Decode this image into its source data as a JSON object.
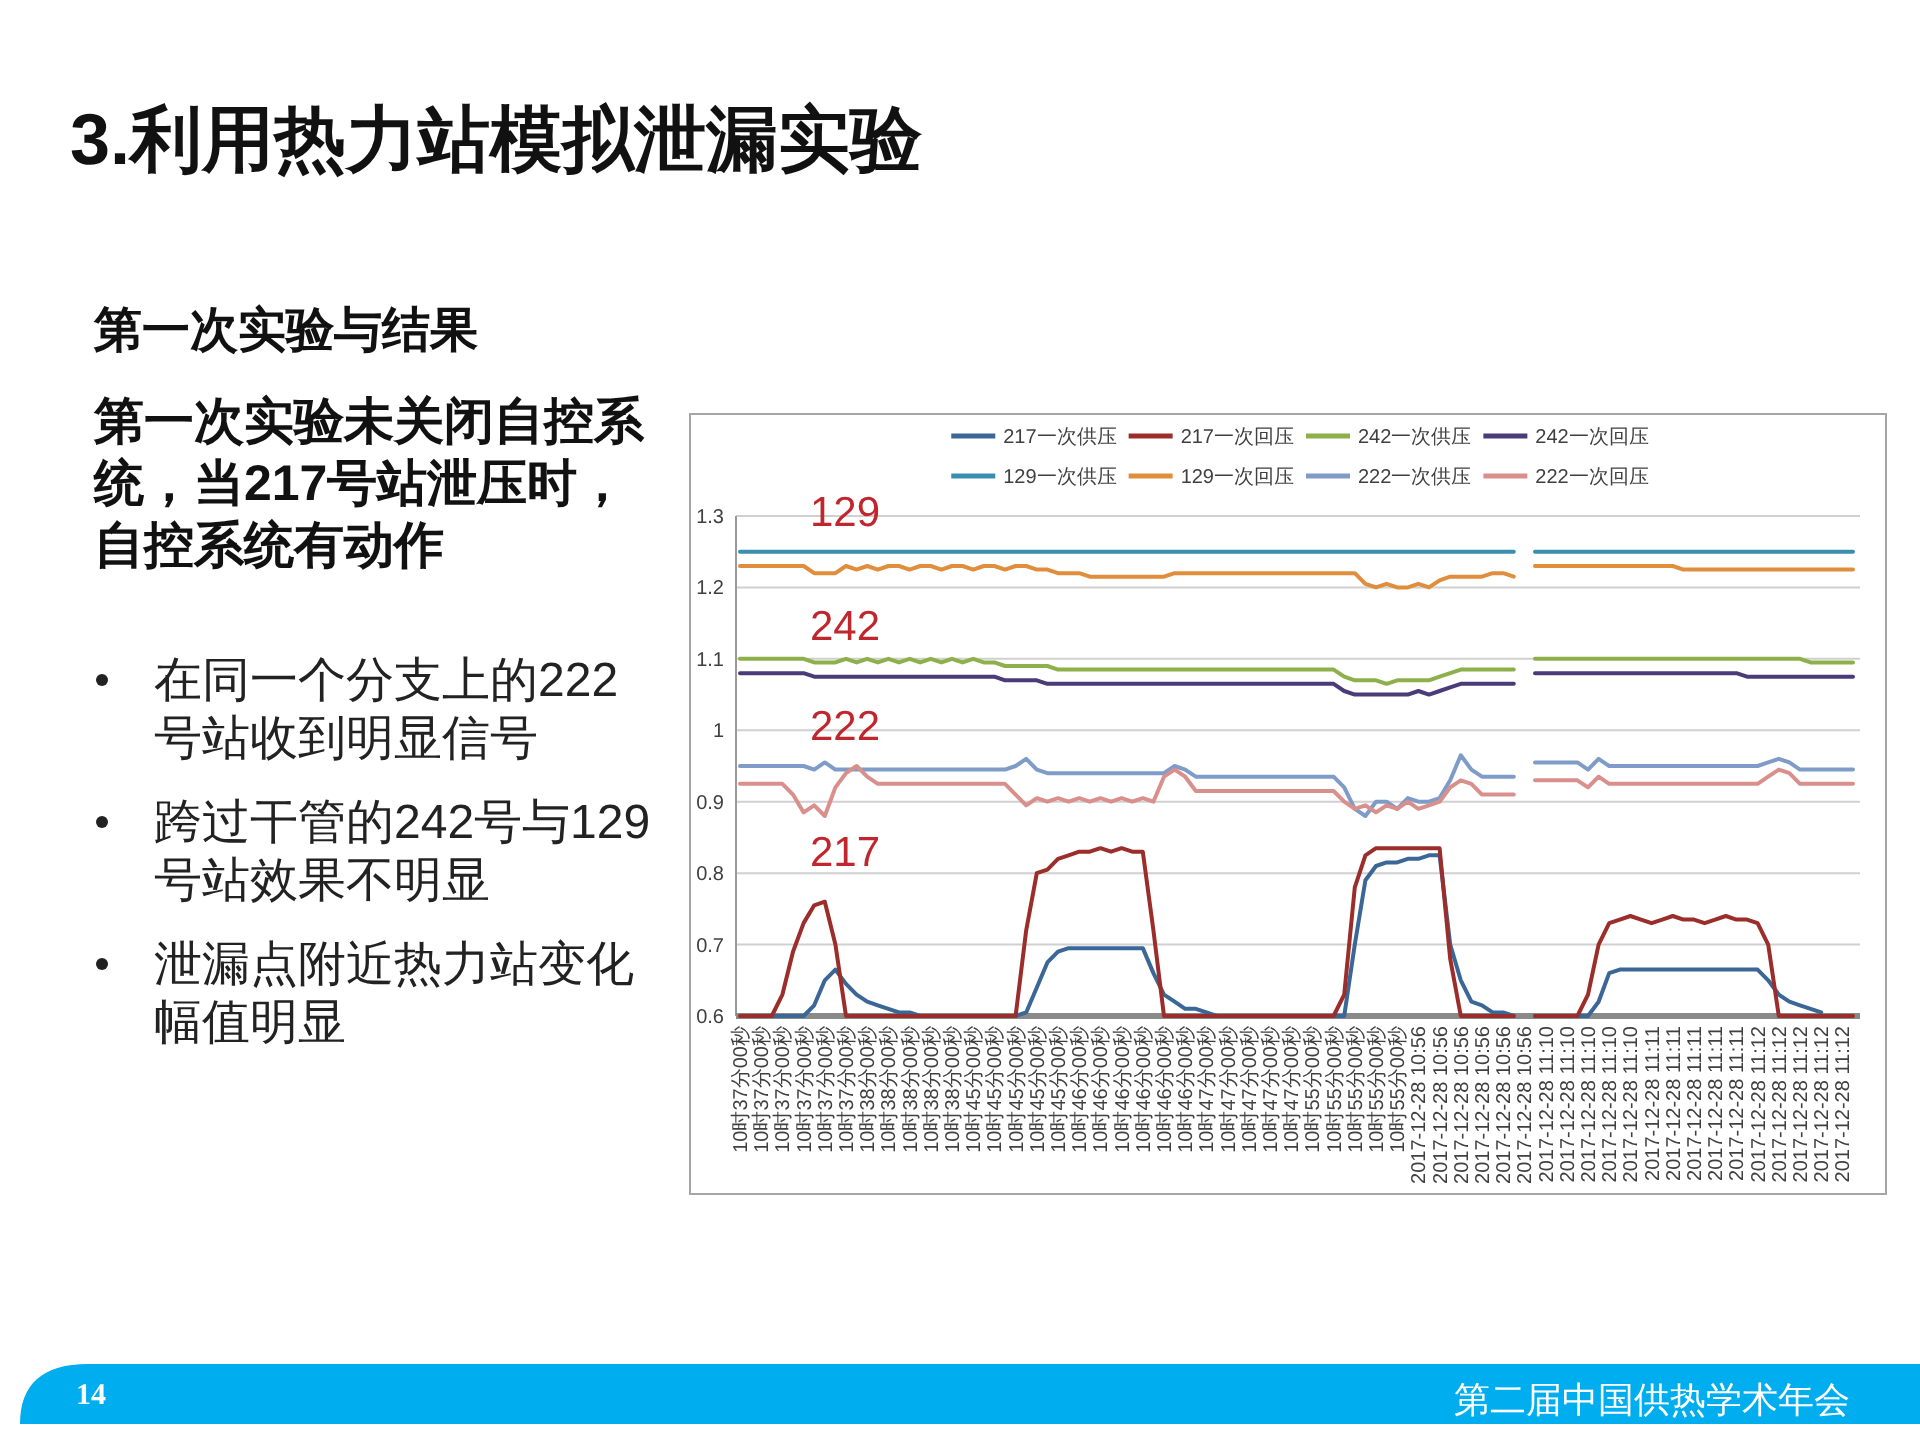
{
  "chart_data": {
    "type": "line",
    "title": "3.利用热力站模拟泄漏实验",
    "subtitle": "第一次实验与结果",
    "annotations": [
      "第一次实验未关闭自控系统，当217号站泄压时，自控系统有动作",
      "在同一个分支上的222号站收到明显信号",
      "跨过干管的242号与129号站效果不明显",
      "泄漏点附近热力站变化幅值明显",
      "129",
      "242",
      "222",
      "217",
      "14",
      "第二届中国供热学术年会"
    ],
    "categories": [
      "10时37分00秒",
      null,
      "10时37分00秒",
      null,
      "10时37分00秒",
      null,
      "10时37分00秒",
      null,
      "10时37分00秒",
      null,
      "10时37分00秒",
      null,
      "10时38分00秒",
      null,
      "10时38分00秒",
      null,
      "10时38分00秒",
      null,
      "10时38分00秒",
      null,
      "10时38分00秒",
      null,
      "10时45分00秒",
      null,
      "10时45分00秒",
      null,
      "10时45分00秒",
      null,
      "10时45分00秒",
      null,
      "10时45分00秒",
      null,
      "10时46分00秒",
      null,
      "10时46分00秒",
      null,
      "10时46分00秒",
      null,
      "10时46分00秒",
      null,
      "10时46分00秒",
      null,
      "10时46分00秒",
      null,
      "10时47分00秒",
      null,
      "10时47分00秒",
      null,
      "10时47分00秒",
      null,
      "10时47分00秒",
      null,
      "10时47分00秒",
      null,
      "10时55分00秒",
      null,
      "10时55分00秒",
      null,
      "10时55分00秒",
      null,
      "10时55分00秒",
      null,
      "10时55分00秒",
      null,
      "2017-12-28 10:56",
      null,
      "2017-12-28 10:56",
      null,
      "2017-12-28 10:56",
      null,
      "2017-12-28 10:56",
      null,
      "2017-12-28 10:56",
      null,
      "2017-12-28 10:56",
      null,
      "2017-12-28 11:10",
      null,
      "2017-12-28 11:10",
      null,
      "2017-12-28 11:10",
      null,
      "2017-12-28 11:10",
      null,
      "2017-12-28 11:10",
      null,
      "2017-12-28 11:11",
      null,
      "2017-12-28 11:11",
      null,
      "2017-12-28 11:11",
      null,
      "2017-12-28 11:11",
      null,
      "2017-12-28 11:11",
      null,
      "2017-12-28 11:12",
      null,
      "2017-12-28 11:12",
      null,
      "2017-12-28 11:12",
      null,
      "2017-12-28 11:12",
      null,
      "2017-12-28 11:12",
      null
    ],
    "series": [
      {
        "name": "217一次供压",
        "color": "#3a6796",
        "values": [
          null,
          null,
          0.6,
          0.6,
          0.6,
          0.6,
          0.6,
          0.615,
          0.65,
          0.665,
          0.645,
          0.63,
          0.62,
          0.615,
          0.61,
          0.605,
          0.605,
          0.6,
          0.6,
          0.6,
          0.6,
          0.6,
          0.6,
          0.6,
          0.6,
          0.6,
          0.6,
          0.605,
          0.64,
          0.675,
          0.69,
          0.695,
          0.695,
          0.695,
          0.695,
          0.695,
          0.695,
          0.695,
          0.695,
          0.66,
          0.63,
          0.62,
          0.61,
          0.61,
          0.605,
          0.6,
          0.6,
          0.6,
          0.6,
          0.6,
          0.6,
          0.6,
          0.6,
          0.6,
          0.6,
          0.6,
          0.6,
          0.6,
          0.7,
          0.79,
          0.81,
          0.815,
          0.815,
          0.82,
          0.82,
          0.825,
          0.825,
          0.7,
          0.65,
          0.62,
          0.615,
          0.605,
          0.605,
          0.6,
          null,
          0.6,
          0.6,
          0.6,
          0.6,
          0.6,
          0.6,
          0.62,
          0.66,
          0.665,
          0.665,
          0.665,
          0.665,
          0.665,
          0.665,
          0.665,
          0.665,
          0.665,
          0.665,
          0.665,
          0.665,
          0.665,
          0.665,
          0.65,
          0.63,
          0.62,
          0.615,
          0.61,
          0.605,
          null,
          null,
          null
        ]
      },
      {
        "name": "217一次回压",
        "color": "#9b2d2a",
        "values": [
          0.6,
          0.6,
          0.6,
          0.6,
          0.63,
          0.69,
          0.73,
          0.755,
          0.76,
          0.7,
          0.6,
          0.6,
          0.6,
          0.6,
          0.6,
          0.6,
          0.6,
          0.6,
          0.6,
          0.6,
          0.6,
          0.6,
          0.6,
          0.6,
          0.6,
          0.6,
          0.6,
          0.72,
          0.8,
          0.805,
          0.82,
          0.825,
          0.83,
          0.83,
          0.835,
          0.83,
          0.835,
          0.83,
          0.83,
          0.72,
          0.6,
          0.6,
          0.6,
          0.6,
          0.6,
          0.6,
          0.6,
          0.6,
          0.6,
          0.6,
          0.6,
          0.6,
          0.6,
          0.6,
          0.6,
          0.6,
          0.6,
          0.63,
          0.78,
          0.825,
          0.835,
          0.835,
          0.835,
          0.835,
          0.835,
          0.835,
          0.835,
          0.68,
          0.6,
          0.6,
          0.6,
          0.6,
          0.6,
          0.6,
          null,
          0.6,
          0.6,
          0.6,
          0.6,
          0.6,
          0.63,
          0.7,
          0.73,
          0.735,
          0.74,
          0.735,
          0.73,
          0.735,
          0.74,
          0.735,
          0.735,
          0.73,
          0.735,
          0.74,
          0.735,
          0.735,
          0.73,
          0.7,
          0.6,
          0.6,
          0.6,
          0.6,
          0.6,
          0.6,
          0.6,
          0.6
        ]
      },
      {
        "name": "242一次供压",
        "color": "#8eb04b",
        "values": [
          1.1,
          1.1,
          1.1,
          1.1,
          1.1,
          1.1,
          1.1,
          1.095,
          1.095,
          1.095,
          1.1,
          1.095,
          1.1,
          1.095,
          1.1,
          1.095,
          1.1,
          1.095,
          1.1,
          1.095,
          1.1,
          1.095,
          1.1,
          1.095,
          1.095,
          1.09,
          1.09,
          1.09,
          1.09,
          1.09,
          1.085,
          1.085,
          1.085,
          1.085,
          1.085,
          1.085,
          1.085,
          1.085,
          1.085,
          1.085,
          1.085,
          1.085,
          1.085,
          1.085,
          1.085,
          1.085,
          1.085,
          1.085,
          1.085,
          1.085,
          1.085,
          1.085,
          1.085,
          1.085,
          1.085,
          1.085,
          1.085,
          1.075,
          1.07,
          1.07,
          1.07,
          1.065,
          1.07,
          1.07,
          1.07,
          1.07,
          1.075,
          1.08,
          1.085,
          1.085,
          1.085,
          1.085,
          1.085,
          1.085,
          null,
          1.1,
          1.1,
          1.1,
          1.1,
          1.1,
          1.1,
          1.1,
          1.1,
          1.1,
          1.1,
          1.1,
          1.1,
          1.1,
          1.1,
          1.1,
          1.1,
          1.1,
          1.1,
          1.1,
          1.1,
          1.1,
          1.1,
          1.1,
          1.1,
          1.1,
          1.1,
          1.095,
          1.095,
          1.095,
          1.095,
          1.095
        ]
      },
      {
        "name": "242一次回压",
        "color": "#4b3b78",
        "values": [
          1.08,
          1.08,
          1.08,
          1.08,
          1.08,
          1.08,
          1.08,
          1.075,
          1.075,
          1.075,
          1.075,
          1.075,
          1.075,
          1.075,
          1.075,
          1.075,
          1.075,
          1.075,
          1.075,
          1.075,
          1.075,
          1.075,
          1.075,
          1.075,
          1.075,
          1.07,
          1.07,
          1.07,
          1.07,
          1.065,
          1.065,
          1.065,
          1.065,
          1.065,
          1.065,
          1.065,
          1.065,
          1.065,
          1.065,
          1.065,
          1.065,
          1.065,
          1.065,
          1.065,
          1.065,
          1.065,
          1.065,
          1.065,
          1.065,
          1.065,
          1.065,
          1.065,
          1.065,
          1.065,
          1.065,
          1.065,
          1.065,
          1.055,
          1.05,
          1.05,
          1.05,
          1.05,
          1.05,
          1.05,
          1.055,
          1.05,
          1.055,
          1.06,
          1.065,
          1.065,
          1.065,
          1.065,
          1.065,
          1.065,
          null,
          1.08,
          1.08,
          1.08,
          1.08,
          1.08,
          1.08,
          1.08,
          1.08,
          1.08,
          1.08,
          1.08,
          1.08,
          1.08,
          1.08,
          1.08,
          1.08,
          1.08,
          1.08,
          1.08,
          1.08,
          1.075,
          1.075,
          1.075,
          1.075,
          1.075,
          1.075,
          1.075,
          1.075,
          1.075,
          1.075,
          1.075
        ]
      },
      {
        "name": "129一次供压",
        "color": "#3a8fb0",
        "values": [
          1.25,
          1.25,
          1.25,
          1.25,
          1.25,
          1.25,
          1.25,
          1.25,
          1.25,
          1.25,
          1.25,
          1.25,
          1.25,
          1.25,
          1.25,
          1.25,
          1.25,
          1.25,
          1.25,
          1.25,
          1.25,
          1.25,
          1.25,
          1.25,
          1.25,
          1.25,
          1.25,
          1.25,
          1.25,
          1.25,
          1.25,
          1.25,
          1.25,
          1.25,
          1.25,
          1.25,
          1.25,
          1.25,
          1.25,
          1.25,
          1.25,
          1.25,
          1.25,
          1.25,
          1.25,
          1.25,
          1.25,
          1.25,
          1.25,
          1.25,
          1.25,
          1.25,
          1.25,
          1.25,
          1.25,
          1.25,
          1.25,
          1.25,
          1.25,
          1.25,
          1.25,
          1.25,
          1.25,
          1.25,
          1.25,
          1.25,
          1.25,
          1.25,
          1.25,
          1.25,
          1.25,
          1.25,
          1.25,
          1.25,
          null,
          1.25,
          1.25,
          1.25,
          1.25,
          1.25,
          1.25,
          1.25,
          1.25,
          1.25,
          1.25,
          1.25,
          1.25,
          1.25,
          1.25,
          1.25,
          1.25,
          1.25,
          1.25,
          1.25,
          1.25,
          1.25,
          1.25,
          1.25,
          1.25,
          1.25,
          1.25,
          1.25,
          1.25,
          1.25,
          1.25,
          1.25
        ]
      },
      {
        "name": "129一次回压",
        "color": "#e08d3c",
        "values": [
          1.23,
          1.23,
          1.23,
          1.23,
          1.23,
          1.23,
          1.23,
          1.22,
          1.22,
          1.22,
          1.23,
          1.225,
          1.23,
          1.225,
          1.23,
          1.23,
          1.225,
          1.23,
          1.23,
          1.225,
          1.23,
          1.23,
          1.225,
          1.23,
          1.23,
          1.225,
          1.23,
          1.23,
          1.225,
          1.225,
          1.22,
          1.22,
          1.22,
          1.215,
          1.215,
          1.215,
          1.215,
          1.215,
          1.215,
          1.215,
          1.215,
          1.22,
          1.22,
          1.22,
          1.22,
          1.22,
          1.22,
          1.22,
          1.22,
          1.22,
          1.22,
          1.22,
          1.22,
          1.22,
          1.22,
          1.22,
          1.22,
          1.22,
          1.22,
          1.205,
          1.2,
          1.205,
          1.2,
          1.2,
          1.205,
          1.2,
          1.21,
          1.215,
          1.215,
          1.215,
          1.215,
          1.22,
          1.22,
          1.215,
          null,
          1.23,
          1.23,
          1.23,
          1.23,
          1.23,
          1.23,
          1.23,
          1.23,
          1.23,
          1.23,
          1.23,
          1.23,
          1.23,
          1.23,
          1.225,
          1.225,
          1.225,
          1.225,
          1.225,
          1.225,
          1.225,
          1.225,
          1.225,
          1.225,
          1.225,
          1.225,
          1.225,
          1.225,
          1.225,
          1.225,
          1.225
        ]
      },
      {
        "name": "222一次供压",
        "color": "#7f9cc8",
        "values": [
          0.95,
          0.95,
          0.95,
          0.95,
          0.95,
          0.95,
          0.95,
          0.945,
          0.955,
          0.945,
          0.945,
          0.945,
          0.945,
          0.945,
          0.945,
          0.945,
          0.945,
          0.945,
          0.945,
          0.945,
          0.945,
          0.945,
          0.945,
          0.945,
          0.945,
          0.945,
          0.95,
          0.96,
          0.945,
          0.94,
          0.94,
          0.94,
          0.94,
          0.94,
          0.94,
          0.94,
          0.94,
          0.94,
          0.94,
          0.94,
          0.94,
          0.95,
          0.945,
          0.935,
          0.935,
          0.935,
          0.935,
          0.935,
          0.935,
          0.935,
          0.935,
          0.935,
          0.935,
          0.935,
          0.935,
          0.935,
          0.935,
          0.92,
          0.89,
          0.88,
          0.9,
          0.9,
          0.89,
          0.905,
          0.9,
          0.9,
          0.905,
          0.93,
          0.965,
          0.945,
          0.935,
          0.935,
          0.935,
          0.935,
          null,
          0.955,
          0.955,
          0.955,
          0.955,
          0.955,
          0.945,
          0.96,
          0.95,
          0.95,
          0.95,
          0.95,
          0.95,
          0.95,
          0.95,
          0.95,
          0.95,
          0.95,
          0.95,
          0.95,
          0.95,
          0.95,
          0.95,
          0.955,
          0.96,
          0.955,
          0.945,
          0.945,
          0.945,
          0.945,
          0.945,
          0.945
        ]
      },
      {
        "name": "222一次回压",
        "color": "#d9908c",
        "values": [
          0.925,
          0.925,
          0.925,
          0.925,
          0.925,
          0.91,
          0.885,
          0.895,
          0.88,
          0.92,
          0.94,
          0.95,
          0.935,
          0.925,
          0.925,
          0.925,
          0.925,
          0.925,
          0.925,
          0.925,
          0.925,
          0.925,
          0.925,
          0.925,
          0.925,
          0.925,
          0.91,
          0.895,
          0.905,
          0.9,
          0.905,
          0.9,
          0.905,
          0.9,
          0.905,
          0.9,
          0.905,
          0.9,
          0.905,
          0.9,
          0.935,
          0.945,
          0.935,
          0.915,
          0.915,
          0.915,
          0.915,
          0.915,
          0.915,
          0.915,
          0.915,
          0.915,
          0.915,
          0.915,
          0.915,
          0.915,
          0.915,
          0.9,
          0.89,
          0.895,
          0.885,
          0.895,
          0.89,
          0.9,
          0.89,
          0.895,
          0.9,
          0.92,
          0.93,
          0.925,
          0.91,
          0.91,
          0.91,
          0.91,
          null,
          0.93,
          0.93,
          0.93,
          0.93,
          0.93,
          0.92,
          0.935,
          0.925,
          0.925,
          0.925,
          0.925,
          0.925,
          0.925,
          0.925,
          0.925,
          0.925,
          0.925,
          0.925,
          0.925,
          0.925,
          0.925,
          0.925,
          0.935,
          0.945,
          0.94,
          0.925,
          0.925,
          0.925,
          0.925,
          0.925,
          0.925
        ]
      }
    ],
    "ylim": [
      0.6,
      1.3
    ],
    "yticks": [
      0.6,
      0.7,
      0.8,
      0.9,
      1,
      1.1,
      1.2,
      1.3
    ],
    "grid": "y",
    "legend": "top"
  }
}
